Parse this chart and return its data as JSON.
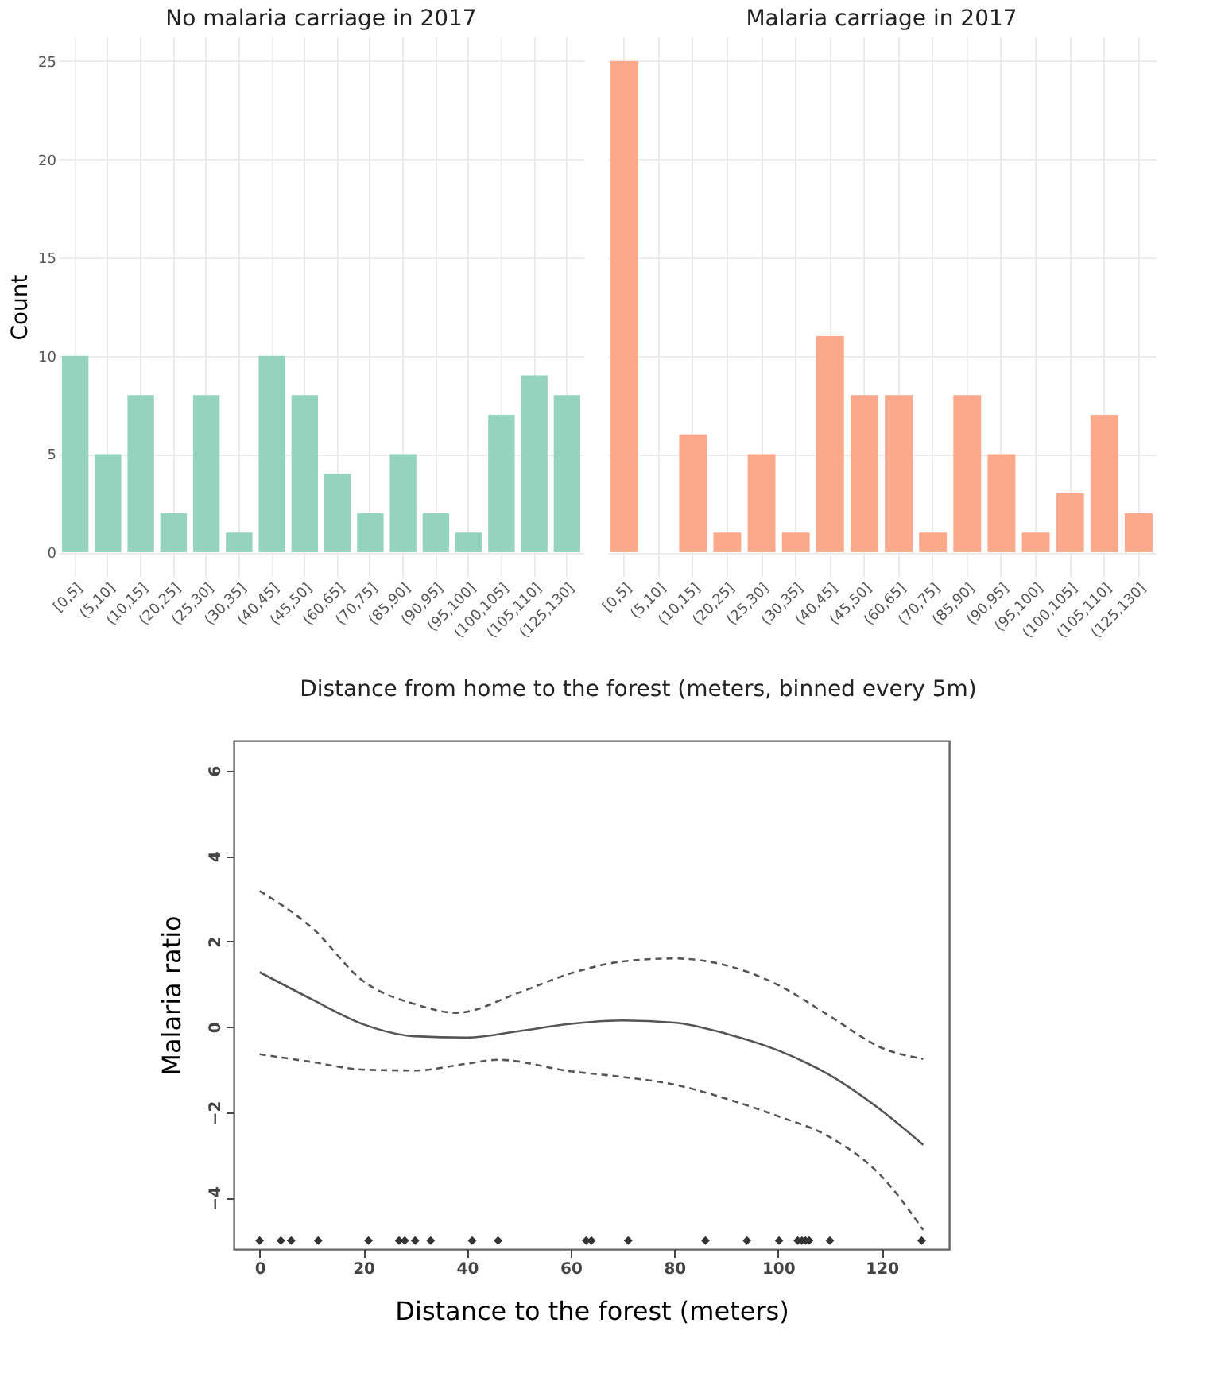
{
  "chart_data": [
    {
      "type": "bar",
      "title": "No malaria carriage in 2017",
      "ylabel": "Count",
      "xlabel": "Distance from home to the forest (meters, binned every 5m)",
      "categories": [
        "[0,5]",
        "(5,10]",
        "(10,15]",
        "(20,25]",
        "(25,30]",
        "(30,35]",
        "(40,45]",
        "(45,50]",
        "(60,65]",
        "(70,75]",
        "(85,90]",
        "(90,95]",
        "(95,100]",
        "(100,105]",
        "(105,110]",
        "(125,130]"
      ],
      "series": [
        {
          "color": "#94d4bf",
          "values": [
            10,
            5,
            8,
            2,
            8,
            1,
            10,
            8,
            4,
            2,
            5,
            2,
            1,
            7,
            9,
            8
          ]
        }
      ],
      "ylim": [
        -1.25,
        26.25
      ],
      "yticks": [
        0,
        5,
        10,
        15,
        20,
        25
      ],
      "grid": true
    },
    {
      "type": "bar",
      "title": "Malaria carriage in 2017",
      "categories": [
        "[0,5]",
        "(5,10]",
        "(10,15]",
        "(20,25]",
        "(25,30]",
        "(30,35]",
        "(40,45]",
        "(45,50]",
        "(60,65]",
        "(70,75]",
        "(85,90]",
        "(90,95]",
        "(95,100]",
        "(100,105]",
        "(105,110]",
        "(125,130]"
      ],
      "series": [
        {
          "color": "#fca98b",
          "values": [
            25,
            0,
            6,
            1,
            5,
            1,
            11,
            8,
            8,
            1,
            8,
            5,
            1,
            3,
            7,
            2
          ]
        }
      ],
      "ylim": [
        -1.25,
        26.25
      ],
      "yticks": [
        0,
        5,
        10,
        15,
        20,
        25
      ],
      "grid": true,
      "tick_labels": "x"
    },
    {
      "type": "line",
      "xlabel": "Distance to the forest (meters)",
      "ylabel": "Malaria ratio",
      "xlim": [
        -5,
        133
      ],
      "xticks": [
        0,
        20,
        40,
        60,
        80,
        100,
        120
      ],
      "ylim": [
        -5.2,
        6.7
      ],
      "yticks": [
        -4,
        -2,
        0,
        2,
        4,
        6
      ],
      "series": [
        {
          "color": "#555555",
          "line_style": "solid",
          "x": [
            0,
            10,
            20,
            30,
            40,
            50,
            60,
            70,
            80,
            90,
            100,
            110,
            120,
            128
          ],
          "values": [
            1.28,
            0.65,
            0.06,
            -0.22,
            -0.25,
            -0.1,
            0.07,
            0.15,
            0.1,
            -0.16,
            -0.55,
            -1.13,
            -1.96,
            -2.76
          ]
        },
        {
          "color": "#555555",
          "line_style": "dashed",
          "x": [
            0,
            10,
            20,
            30,
            38,
            50,
            60,
            70,
            80,
            90,
            100,
            110,
            120,
            128
          ],
          "values": [
            3.18,
            2.33,
            1.07,
            0.53,
            0.33,
            0.8,
            1.25,
            1.53,
            1.6,
            1.44,
            0.98,
            0.25,
            -0.49,
            -0.75
          ]
        },
        {
          "color": "#555555",
          "line_style": "dashed",
          "x": [
            0,
            10,
            20,
            30,
            40,
            46,
            60,
            70,
            80,
            90,
            100,
            110,
            120,
            128
          ],
          "values": [
            -0.64,
            -0.82,
            -1.0,
            -1.02,
            -0.86,
            -0.77,
            -1.04,
            -1.17,
            -1.35,
            -1.68,
            -2.09,
            -2.58,
            -3.5,
            -4.75
          ]
        },
        {
          "type": "scatter",
          "marker": "diamond",
          "color": "#333333",
          "x": [
            0,
            4.1,
            6.1,
            11.3,
            21,
            26.9,
            28,
            30,
            33,
            41,
            46,
            63,
            64,
            71.1,
            86,
            94,
            100.2,
            103.8,
            104.6,
            105.3,
            106,
            110,
            127.7
          ],
          "values": [
            -5,
            -5,
            -5,
            -5,
            -5,
            -5,
            -5,
            -5,
            -5,
            -5,
            -5,
            -5,
            -5,
            -5,
            -5,
            -5,
            -5,
            -5,
            -5,
            -5,
            -5,
            -5,
            -5
          ]
        }
      ]
    }
  ]
}
